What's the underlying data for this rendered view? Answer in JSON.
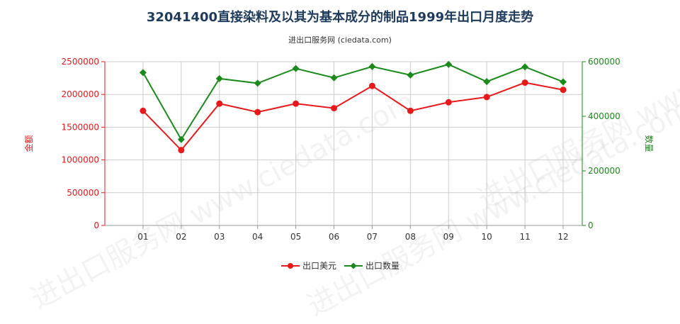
{
  "title": "32041400直接染料及以其为基本成分的制品1999年出口月度走势",
  "subtitle": "进出口服务网 (ciedata.com)",
  "watermark": "进出口服务网 www.ciedata.com",
  "colors": {
    "amount": "#e8191b",
    "quantity": "#1a8a1a",
    "grid": "#cccccc",
    "title": "#1f3b5b"
  },
  "chart_data": {
    "type": "line",
    "categories": [
      "01",
      "02",
      "03",
      "04",
      "05",
      "06",
      "07",
      "08",
      "09",
      "10",
      "11",
      "12"
    ],
    "left_axis": {
      "label": "金额",
      "ylim": [
        0,
        2500000
      ],
      "ticks": [
        0,
        500000,
        1000000,
        1500000,
        2000000,
        2500000
      ],
      "tick_labels": [
        "0",
        "500000",
        "1000000",
        "1500000",
        "2000000",
        "2500000"
      ]
    },
    "right_axis": {
      "label": "数量",
      "ylim": [
        0,
        600000
      ],
      "ticks": [
        0,
        200000,
        400000,
        600000
      ],
      "tick_labels": [
        "0",
        "200000",
        "400000",
        "600000"
      ]
    },
    "series": [
      {
        "name": "出口美元",
        "axis": "left",
        "marker": "circle",
        "values": [
          1750000,
          1150000,
          1860000,
          1730000,
          1860000,
          1790000,
          2130000,
          1750000,
          1880000,
          1960000,
          2180000,
          2070000
        ]
      },
      {
        "name": "出口数量",
        "axis": "right",
        "marker": "diamond",
        "values": [
          560000,
          315000,
          538000,
          521000,
          575000,
          541000,
          582000,
          551000,
          590000,
          527000,
          581000,
          526000
        ]
      }
    ],
    "grid": true,
    "legend_position": "bottom"
  }
}
